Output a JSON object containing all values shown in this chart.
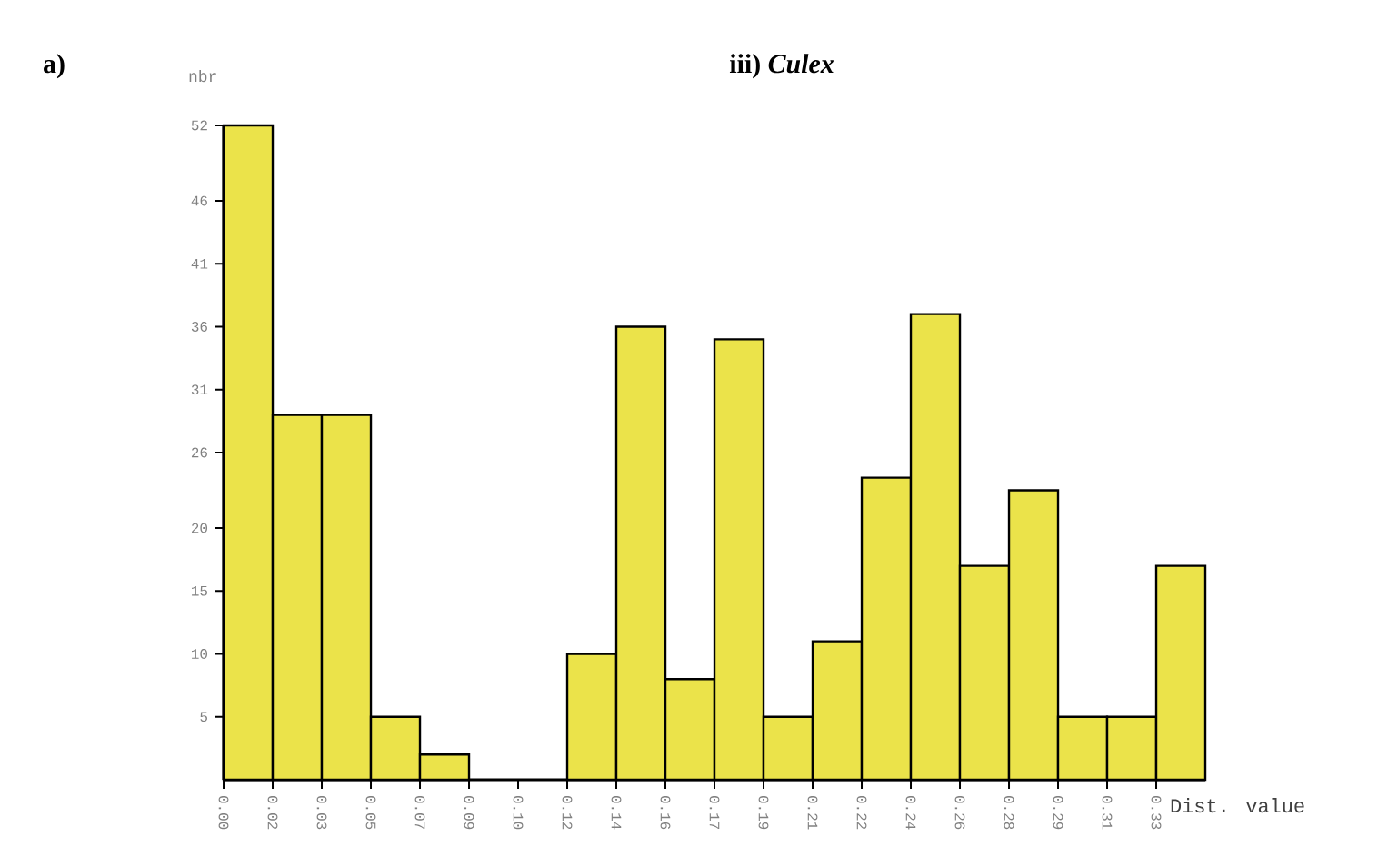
{
  "chart_data": {
    "type": "histogram",
    "title": "iii) *Culex*",
    "xlabel": "Dist. value",
    "ylabel": "nbr",
    "annotations": [
      "a)"
    ],
    "bins": [
      0,
      0.0173,
      0.0346,
      0.0519,
      0.0692,
      0.0865,
      0.1038,
      0.1211,
      0.1384,
      0.1557,
      0.173,
      0.1903,
      0.2076,
      0.2249,
      0.2422,
      0.2595,
      0.2768,
      0.2941,
      0.3114,
      0.3287,
      0.346
    ],
    "values": [
      52,
      29,
      29,
      5,
      2,
      0,
      0,
      10,
      36,
      8,
      35,
      5,
      11,
      24,
      37,
      17,
      23,
      5,
      5,
      17
    ],
    "color": "#ebe34a",
    "xlim": [
      0,
      0.346
    ],
    "ylim": [
      0,
      52
    ],
    "xticks": [
      {
        "value": 0,
        "label": "0.00"
      },
      {
        "value": 0.0173,
        "label": "0.02"
      },
      {
        "value": 0.0346,
        "label": "0.03"
      },
      {
        "value": 0.0519,
        "label": "0.05"
      },
      {
        "value": 0.0692,
        "label": "0.07"
      },
      {
        "value": 0.0865,
        "label": "0.09"
      },
      {
        "value": 0.1038,
        "label": "0.10"
      },
      {
        "value": 0.1211,
        "label": "0.12"
      },
      {
        "value": 0.1384,
        "label": "0.14"
      },
      {
        "value": 0.1557,
        "label": "0.16"
      },
      {
        "value": 0.173,
        "label": "0.17"
      },
      {
        "value": 0.1903,
        "label": "0.19"
      },
      {
        "value": 0.2076,
        "label": "0.21"
      },
      {
        "value": 0.2249,
        "label": "0.22"
      },
      {
        "value": 0.2422,
        "label": "0.24"
      },
      {
        "value": 0.2595,
        "label": "0.26"
      },
      {
        "value": 0.2768,
        "label": "0.28"
      },
      {
        "value": 0.2941,
        "label": "0.29"
      },
      {
        "value": 0.3114,
        "label": "0.31"
      },
      {
        "value": 0.3287,
        "label": "0.33"
      }
    ],
    "yticks": [
      5,
      10,
      15,
      20,
      26,
      31,
      36,
      41,
      46,
      52
    ]
  }
}
